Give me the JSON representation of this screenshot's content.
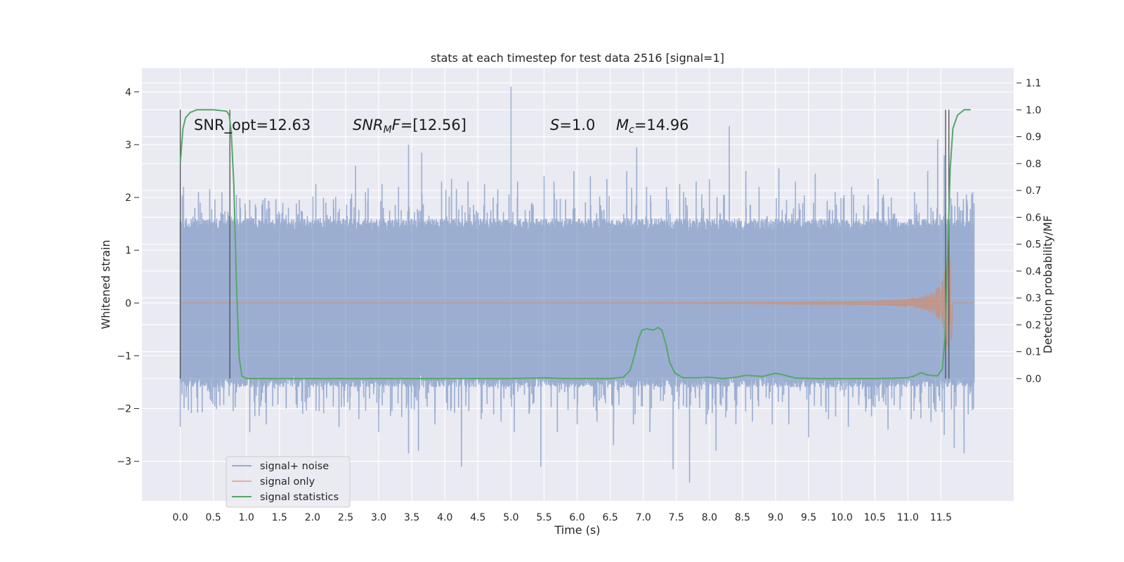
{
  "chart_data": {
    "type": "line",
    "title": "stats at each timestep for test data 2516 [signal=1]",
    "xlabel": "Time (s)",
    "ylabel_left": "Whitened strain",
    "ylabel_right": "Detection probability/MF",
    "xlim": [
      -0.58,
      12.6
    ],
    "ylim_left": [
      -3.75,
      4.45
    ],
    "ylim_right": [
      -0.455,
      1.155
    ],
    "x_ticks": [
      "0.0",
      "0.5",
      "1.0",
      "1.5",
      "2.0",
      "2.5",
      "3.0",
      "3.5",
      "4.0",
      "4.5",
      "5.0",
      "5.5",
      "6.0",
      "6.5",
      "7.0",
      "7.5",
      "8.0",
      "8.5",
      "9.0",
      "9.5",
      "10.0",
      "10.5",
      "11.0",
      "11.5"
    ],
    "y_left_ticks": [
      "−3",
      "−2",
      "−1",
      "0",
      "1",
      "2",
      "3",
      "4"
    ],
    "y_right_ticks": [
      "0.0",
      "0.1",
      "0.2",
      "0.3",
      "0.4",
      "0.5",
      "0.6",
      "0.7",
      "0.8",
      "0.9",
      "1.0",
      "1.1"
    ],
    "grid": true,
    "legend_position": "lower-left",
    "colors": {
      "background": "#eaeaf2",
      "grid": "#ffffff",
      "noise": "#4c72b0",
      "signal": "#dd8452",
      "stat": "#55a868",
      "vline": "#505050"
    },
    "annotations": [
      {
        "text": "SNR_opt=12.63",
        "x": 0.2
      },
      {
        "text": "SNR_{M}F=[12.56]",
        "x": 2.6
      },
      {
        "text": "S=1.0",
        "x": 5.6
      },
      {
        "text": "M_c=14.96",
        "x": 6.6
      }
    ],
    "series": [
      {
        "name": "signal+ noise",
        "axis": "left",
        "description": "whitened strain, noise band approx ±1.5 with spikes",
        "spikes": [
          [
            0.05,
            2.2
          ],
          [
            0.3,
            1.9
          ],
          [
            0.55,
            1.6
          ],
          [
            0.85,
            2.05
          ],
          [
            1.05,
            1.95
          ],
          [
            1.35,
            1.8
          ],
          [
            1.55,
            1.9
          ],
          [
            1.8,
            1.95
          ],
          [
            2.05,
            2.25
          ],
          [
            2.2,
            1.9
          ],
          [
            2.65,
            2.6
          ],
          [
            2.8,
            2.1
          ],
          [
            3.05,
            2.25
          ],
          [
            3.3,
            2.2
          ],
          [
            3.45,
            3.0
          ],
          [
            3.65,
            2.85
          ],
          [
            3.95,
            2.3
          ],
          [
            4.1,
            2.35
          ],
          [
            4.35,
            2.3
          ],
          [
            4.6,
            2.25
          ],
          [
            4.8,
            2.15
          ],
          [
            5.0,
            4.1
          ],
          [
            5.1,
            2.3
          ],
          [
            5.5,
            2.4
          ],
          [
            5.65,
            2.3
          ],
          [
            5.95,
            2.5
          ],
          [
            6.2,
            2.4
          ],
          [
            6.45,
            2.35
          ],
          [
            6.75,
            2.5
          ],
          [
            6.9,
            2.95
          ],
          [
            7.05,
            2.2
          ],
          [
            7.35,
            2.2
          ],
          [
            7.55,
            2.25
          ],
          [
            7.8,
            2.3
          ],
          [
            8.0,
            2.35
          ],
          [
            8.3,
            3.35
          ],
          [
            8.55,
            2.5
          ],
          [
            8.75,
            2.2
          ],
          [
            9.05,
            2.55
          ],
          [
            9.3,
            2.3
          ],
          [
            9.6,
            2.45
          ],
          [
            9.9,
            2.1
          ],
          [
            10.15,
            2.2
          ],
          [
            10.4,
            2.05
          ],
          [
            10.55,
            2.35
          ],
          [
            10.75,
            2.0
          ],
          [
            11.1,
            2.1
          ],
          [
            11.3,
            2.5
          ],
          [
            11.45,
            3.1
          ],
          [
            11.55,
            2.8
          ],
          [
            11.75,
            2.1
          ],
          [
            11.9,
            1.85
          ]
        ],
        "low_spikes": [
          [
            0.0,
            -2.35
          ],
          [
            0.25,
            -1.8
          ],
          [
            0.6,
            -1.95
          ],
          [
            0.8,
            -2.05
          ],
          [
            1.05,
            -2.45
          ],
          [
            1.3,
            -2.3
          ],
          [
            1.6,
            -2.0
          ],
          [
            1.85,
            -2.1
          ],
          [
            2.1,
            -2.05
          ],
          [
            2.4,
            -2.35
          ],
          [
            2.7,
            -2.2
          ],
          [
            3.0,
            -2.45
          ],
          [
            3.2,
            -2.05
          ],
          [
            3.45,
            -2.85
          ],
          [
            3.6,
            -2.8
          ],
          [
            3.85,
            -2.3
          ],
          [
            4.25,
            -3.1
          ],
          [
            4.55,
            -2.2
          ],
          [
            4.85,
            -2.25
          ],
          [
            5.05,
            -2.45
          ],
          [
            5.45,
            -3.1
          ],
          [
            5.7,
            -2.45
          ],
          [
            6.0,
            -2.3
          ],
          [
            6.3,
            -2.25
          ],
          [
            6.55,
            -2.7
          ],
          [
            6.85,
            -2.3
          ],
          [
            7.1,
            -2.45
          ],
          [
            7.45,
            -3.15
          ],
          [
            7.7,
            -3.4
          ],
          [
            7.95,
            -2.3
          ],
          [
            8.1,
            -2.8
          ],
          [
            8.4,
            -2.3
          ],
          [
            8.65,
            -2.25
          ],
          [
            8.95,
            -2.3
          ],
          [
            9.2,
            -2.3
          ],
          [
            9.5,
            -2.55
          ],
          [
            9.8,
            -2.2
          ],
          [
            10.1,
            -2.35
          ],
          [
            10.45,
            -2.15
          ],
          [
            10.7,
            -2.4
          ],
          [
            11.05,
            -2.2
          ],
          [
            11.35,
            -2.25
          ],
          [
            11.55,
            -2.5
          ],
          [
            11.7,
            -2.75
          ],
          [
            11.85,
            -2.85
          ]
        ]
      },
      {
        "name": "signal only",
        "axis": "left",
        "description": "chirp: flat at 0, amplitude grows after ~7.5 s to ~0.85 at 11.6 s, ends at 11.65 s"
      },
      {
        "name": "signal statistics",
        "axis": "right",
        "points": [
          [
            0.0,
            0.8
          ],
          [
            0.04,
            0.93
          ],
          [
            0.08,
            0.97
          ],
          [
            0.15,
            0.99
          ],
          [
            0.25,
            1.0
          ],
          [
            0.5,
            1.0
          ],
          [
            0.7,
            0.995
          ],
          [
            0.74,
            0.98
          ],
          [
            0.77,
            0.92
          ],
          [
            0.81,
            0.72
          ],
          [
            0.85,
            0.35
          ],
          [
            0.89,
            0.08
          ],
          [
            0.93,
            0.01
          ],
          [
            1.0,
            0.0
          ],
          [
            2.0,
            0.0
          ],
          [
            3.0,
            0.0
          ],
          [
            4.0,
            0.0
          ],
          [
            5.0,
            0.0
          ],
          [
            5.5,
            0.003
          ],
          [
            5.8,
            0.0
          ],
          [
            6.5,
            0.0
          ],
          [
            6.7,
            0.005
          ],
          [
            6.8,
            0.03
          ],
          [
            6.87,
            0.09
          ],
          [
            6.93,
            0.15
          ],
          [
            6.98,
            0.18
          ],
          [
            7.05,
            0.185
          ],
          [
            7.15,
            0.18
          ],
          [
            7.22,
            0.19
          ],
          [
            7.28,
            0.18
          ],
          [
            7.34,
            0.13
          ],
          [
            7.4,
            0.06
          ],
          [
            7.48,
            0.02
          ],
          [
            7.6,
            0.003
          ],
          [
            7.8,
            0.003
          ],
          [
            8.0,
            0.005
          ],
          [
            8.2,
            0.0
          ],
          [
            8.4,
            0.005
          ],
          [
            8.55,
            0.012
          ],
          [
            8.7,
            0.01
          ],
          [
            8.8,
            0.008
          ],
          [
            8.9,
            0.014
          ],
          [
            9.0,
            0.02
          ],
          [
            9.1,
            0.015
          ],
          [
            9.3,
            0.002
          ],
          [
            9.6,
            0.0
          ],
          [
            10.0,
            0.0
          ],
          [
            10.5,
            0.0
          ],
          [
            11.0,
            0.003
          ],
          [
            11.1,
            0.01
          ],
          [
            11.2,
            0.022
          ],
          [
            11.3,
            0.013
          ],
          [
            11.45,
            0.01
          ],
          [
            11.52,
            0.035
          ],
          [
            11.56,
            0.15
          ],
          [
            11.6,
            0.45
          ],
          [
            11.64,
            0.78
          ],
          [
            11.68,
            0.93
          ],
          [
            11.75,
            0.98
          ],
          [
            11.85,
            1.0
          ],
          [
            11.95,
            1.0
          ]
        ]
      }
    ],
    "vlines": [
      0.0,
      0.75,
      11.57,
      11.62
    ]
  }
}
